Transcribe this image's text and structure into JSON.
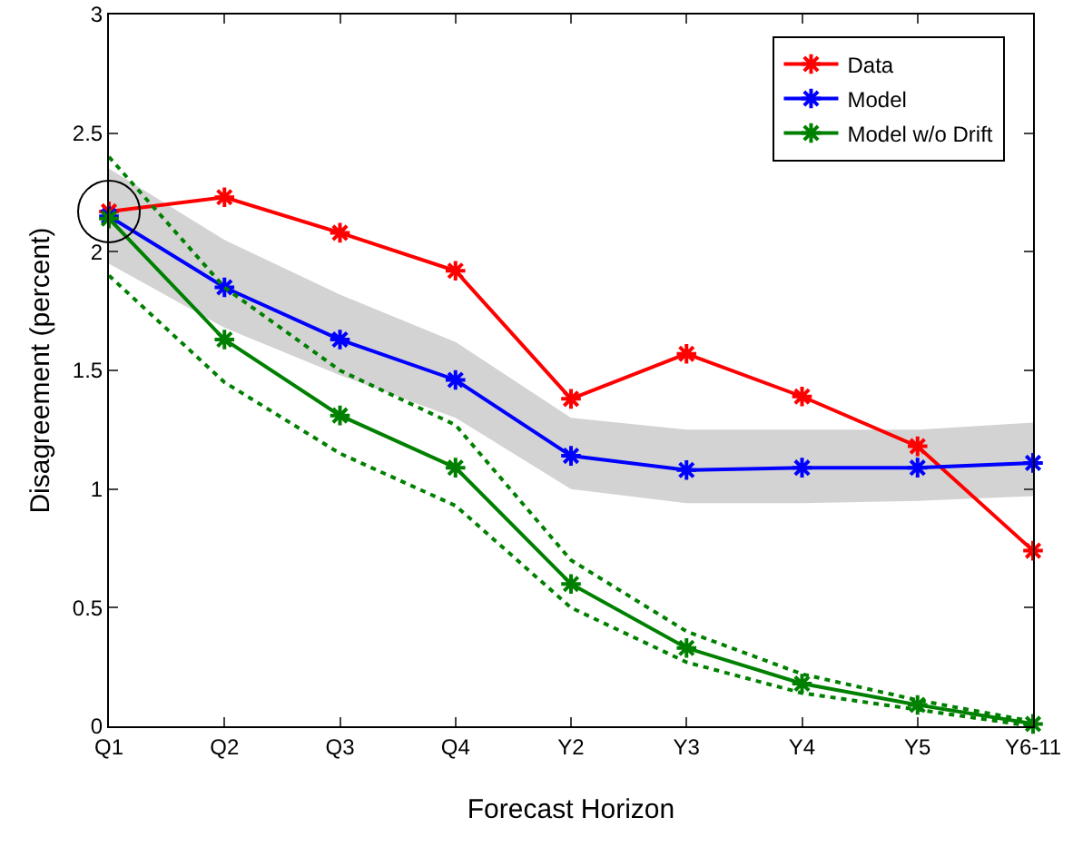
{
  "chart_data": {
    "type": "line",
    "xlabel": "Forecast Horizon",
    "ylabel": "Disagreement (percent)",
    "categories": [
      "Q1",
      "Q2",
      "Q3",
      "Q4",
      "Y2",
      "Y3",
      "Y4",
      "Y5",
      "Y6-11"
    ],
    "ylim": [
      0,
      3
    ],
    "yticks": [
      0,
      0.5,
      1,
      1.5,
      2,
      2.5,
      3
    ],
    "grid": false,
    "legend": "top right",
    "marker": "cross",
    "series": [
      {
        "name": "Data",
        "color": "#ff0000",
        "values": [
          2.17,
          2.23,
          2.08,
          1.92,
          1.38,
          1.57,
          1.39,
          1.18,
          0.74
        ]
      },
      {
        "name": "Model",
        "color": "#0000ff",
        "values": [
          2.15,
          1.85,
          1.63,
          1.46,
          1.14,
          1.08,
          1.09,
          1.09,
          1.11
        ],
        "lower": [
          1.95,
          1.68,
          1.48,
          1.3,
          1.0,
          0.94,
          0.94,
          0.95,
          0.97
        ],
        "upper": [
          2.35,
          2.05,
          1.82,
          1.62,
          1.3,
          1.25,
          1.25,
          1.25,
          1.28
        ]
      },
      {
        "name": "Model w/o Drift",
        "color": "#008000",
        "values": [
          2.14,
          1.63,
          1.31,
          1.09,
          0.6,
          0.33,
          0.18,
          0.09,
          0.01
        ]
      },
      {
        "color": "#008000",
        "line_style": "dotted",
        "marker": "none",
        "values": [
          2.4,
          1.85,
          1.5,
          1.27,
          0.7,
          0.4,
          0.22,
          0.11,
          0.02
        ]
      },
      {
        "color": "#008000",
        "line_style": "dotted",
        "marker": "none",
        "values": [
          1.9,
          1.45,
          1.15,
          0.93,
          0.5,
          0.27,
          0.14,
          0.07,
          0.0
        ]
      }
    ]
  }
}
